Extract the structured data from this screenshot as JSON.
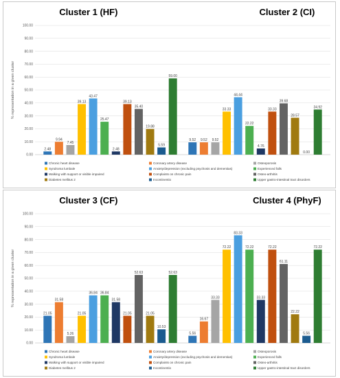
{
  "colors": [
    "#2e75b6",
    "#ed7d31",
    "#a5a5a5",
    "#ffc000",
    "#4a9fe0",
    "#4caf50",
    "#1f3864",
    "#c0500f",
    "#636363",
    "#a07a10",
    "#1b5b8f",
    "#2e7d32"
  ],
  "legend": {
    "items": [
      "Chronic heart disease",
      "Coronary artery disease",
      "Osteoporosis",
      "Syndroma lumbale",
      "Anxiety/depression (excluding psychosis and dementias)",
      "Experienced falls",
      "Walking with support or visible impaired",
      "Complaints on chronic pain",
      "Osteo-arthritis",
      "Diabetes mellitus 2",
      "Incontinentio",
      "Upper gastro-intestinal tract disorders"
    ]
  },
  "chart_data": [
    {
      "type": "bar",
      "panel": 0,
      "title": "Cluster 1 (HF)",
      "ylabel": "% representation in a given cluster",
      "ylim": [
        0,
        100
      ],
      "yticks": [
        "0.00",
        "10.00",
        "20.00",
        "30.00",
        "40.00",
        "50.00",
        "60.00",
        "70.00",
        "80.00",
        "90.00",
        "100.00"
      ],
      "values": [
        2.48,
        9.94,
        7.45,
        39.13,
        43.47,
        25.47,
        2.48,
        39.13,
        35.4,
        19.88,
        5.59,
        59.0
      ],
      "labels": [
        "2.48",
        "9.94",
        "7.45",
        "39.13",
        "43.47",
        "25.47",
        "2.48",
        "39.13",
        "35.40",
        "19.88",
        "5.59",
        "59.00"
      ]
    },
    {
      "type": "bar",
      "panel": 0,
      "title": "Cluster 2 (CI)",
      "ylim": [
        0,
        100
      ],
      "values": [
        9.52,
        9.52,
        9.52,
        33.33,
        44.44,
        22.22,
        4.76,
        33.33,
        39.68,
        28.57,
        0.0,
        34.92
      ],
      "labels": [
        "9.52",
        "9.52",
        "9.52",
        "33.33",
        "44.44",
        "22.22",
        "4.76",
        "33.33",
        "39.68",
        "28.57",
        "0.00",
        "34.92"
      ]
    },
    {
      "type": "bar",
      "panel": 1,
      "title": "Cluster 3 (CF)",
      "ylabel": "% representation in a given cluster",
      "ylim": [
        0,
        100
      ],
      "yticks": [
        "0.00",
        "10.00",
        "20.00",
        "30.00",
        "40.00",
        "50.00",
        "60.00",
        "70.00",
        "80.00",
        "90.00",
        "100.00"
      ],
      "values": [
        21.05,
        31.58,
        5.26,
        21.05,
        36.84,
        36.84,
        31.58,
        21.05,
        52.63,
        21.05,
        10.53,
        52.63
      ],
      "labels": [
        "21.05",
        "31.58",
        "5.26",
        "21.05",
        "36.84",
        "36.84",
        "31.58",
        "21.05",
        "52.63",
        "21.05",
        "10.53",
        "52.63"
      ]
    },
    {
      "type": "bar",
      "panel": 1,
      "title": "Cluster 4 (PhyF)",
      "ylim": [
        0,
        100
      ],
      "values": [
        5.56,
        16.67,
        33.33,
        72.22,
        83.33,
        72.22,
        33.33,
        72.22,
        61.11,
        22.22,
        5.56,
        72.22
      ],
      "labels": [
        "5.56",
        "16.67",
        "33.33",
        "72.22",
        "83.33",
        "72.22",
        "33.33",
        "72.22",
        "61.11",
        "22.22",
        "5.56",
        "72.22"
      ]
    }
  ]
}
